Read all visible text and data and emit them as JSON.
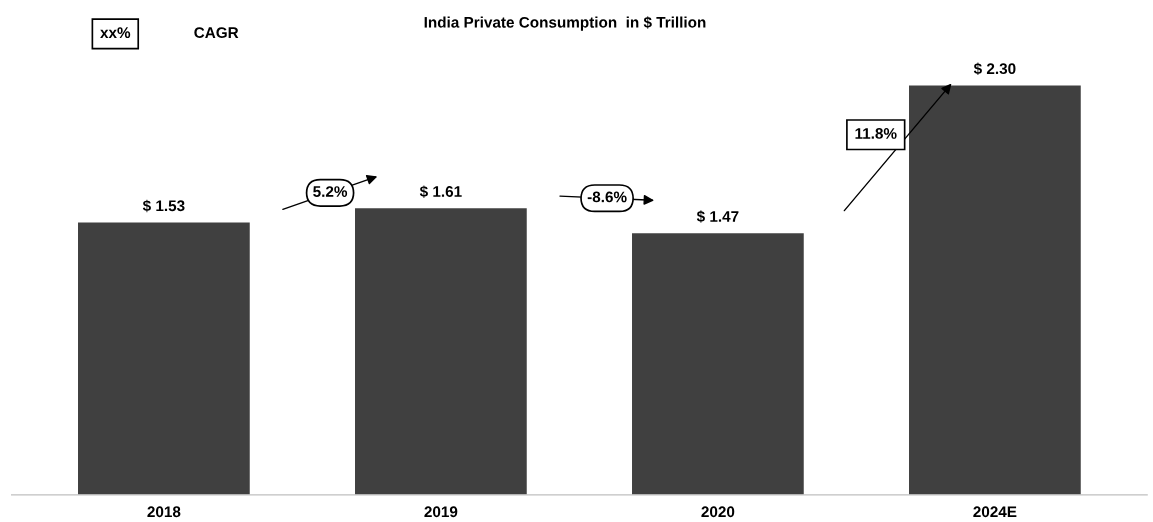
{
  "chart_data": {
    "type": "bar",
    "title": "India Private Consumption  in $ Trillion",
    "categories": [
      "2018",
      "2019",
      "2020",
      "2024E"
    ],
    "values": [
      1.53,
      1.61,
      1.47,
      2.3
    ],
    "value_labels": [
      "$ 1.53",
      "$ 1.61",
      "$ 1.47",
      "$ 2.30"
    ],
    "color": "#404040",
    "annotations": [
      "xx%",
      "CAGR",
      "5.2%",
      "-8.6%",
      "11.8%"
    ],
    "grid": false,
    "legend": false
  }
}
